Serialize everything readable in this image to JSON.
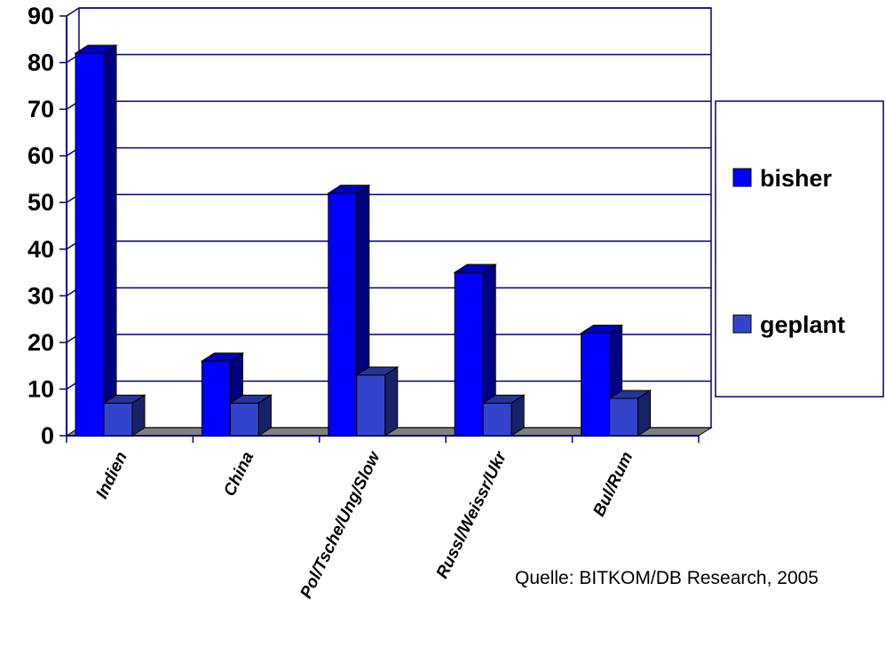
{
  "chart_data": {
    "type": "bar",
    "categories": [
      "Indien",
      "China",
      "Pol/Tsche/Ung/Slow",
      "Russl/Weissr/Ukr",
      "Bul/Rum"
    ],
    "series": [
      {
        "name": "bisher",
        "values": [
          82,
          16,
          52,
          35,
          22
        ],
        "color": "#0000FF"
      },
      {
        "name": "geplant",
        "values": [
          7,
          7,
          13,
          7,
          8
        ],
        "color": "#3344CC"
      }
    ],
    "yticks": [
      "0",
      "10",
      "20",
      "30",
      "40",
      "50",
      "60",
      "70",
      "80",
      "90"
    ],
    "ylim": [
      0,
      90
    ],
    "grid": true,
    "legend_position": "right",
    "source": "Quelle: BITKOM/DB Research, 2005"
  },
  "colors": {
    "axis": "#000080",
    "floor": "#808080",
    "gridline": "#000080"
  }
}
